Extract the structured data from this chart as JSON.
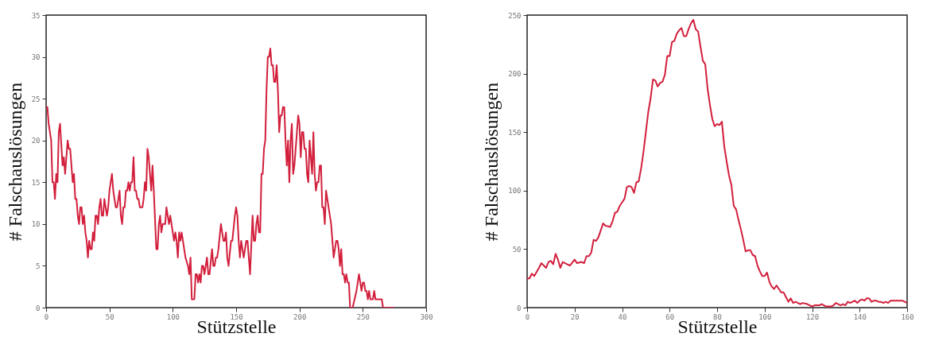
{
  "chart_data": [
    {
      "type": "line",
      "xlabel": "Stützstelle",
      "ylabel": "# Falschauslösungen",
      "xlim": [
        0,
        300
      ],
      "ylim": [
        0,
        35
      ],
      "xticks": [
        0,
        50,
        100,
        150,
        200,
        250,
        300
      ],
      "yticks": [
        0,
        5,
        10,
        15,
        20,
        25,
        30,
        35
      ],
      "grid": false,
      "line_style": "solid",
      "series": [
        {
          "color": "#d21f3c",
          "x": [
            0,
            1,
            2,
            4,
            5,
            6,
            7,
            8,
            9,
            10,
            11,
            13,
            14,
            15,
            17,
            18,
            19,
            21,
            22,
            23,
            24,
            25,
            26,
            27,
            28,
            29,
            30,
            31,
            32,
            33,
            34,
            35,
            36,
            37,
            38,
            39,
            40,
            41,
            42,
            43,
            44,
            45,
            46,
            47,
            48,
            49,
            50,
            52,
            53,
            54,
            55,
            56,
            57,
            58,
            59,
            60,
            61,
            62,
            63,
            64,
            65,
            66,
            67,
            68,
            69,
            70,
            71,
            72,
            73,
            74,
            76,
            77,
            78,
            79,
            80,
            81,
            83,
            84,
            85,
            87,
            88,
            89,
            90,
            91,
            92,
            94,
            95,
            96,
            97,
            98,
            99,
            100,
            101,
            102,
            103,
            104,
            105,
            106,
            107,
            108,
            110,
            112,
            113,
            114,
            115,
            117,
            118,
            119,
            120,
            121,
            122,
            123,
            124,
            125,
            127,
            128,
            129,
            131,
            132,
            133,
            134,
            135,
            136,
            138,
            139,
            140,
            141,
            142,
            143,
            144,
            146,
            147,
            149,
            150,
            151,
            152,
            153,
            154,
            155,
            156,
            157,
            158,
            159,
            160,
            161,
            163,
            164,
            165,
            166,
            167,
            168,
            169,
            170,
            171,
            172,
            173,
            174,
            175,
            176,
            177,
            178,
            179,
            180,
            181,
            182,
            183,
            184,
            185,
            186,
            187,
            188,
            189,
            190,
            191,
            192,
            193,
            194,
            195,
            196,
            197,
            198,
            199,
            200,
            201,
            202,
            203,
            204,
            205,
            206,
            207,
            208,
            209,
            210,
            211,
            212,
            213,
            214,
            215,
            216,
            217,
            218,
            219,
            220,
            221,
            222,
            223,
            224,
            225,
            226,
            227,
            228,
            229,
            230,
            231,
            232,
            233,
            234,
            235,
            236,
            237,
            238,
            239,
            240,
            242,
            245,
            247,
            249,
            250,
            251,
            252,
            253,
            254,
            255,
            256,
            258,
            259,
            260,
            265,
            266,
            275
          ],
          "values": [
            24,
            24,
            22,
            20,
            15,
            15,
            13,
            16,
            15,
            21,
            22,
            17,
            18,
            16,
            20,
            19,
            19,
            15,
            16,
            13,
            13,
            11,
            10,
            12,
            12,
            10,
            11,
            9,
            8,
            6,
            8,
            7,
            7,
            9,
            8,
            11,
            11,
            10,
            12,
            13,
            11,
            11,
            13,
            12,
            11,
            12,
            14,
            16,
            14,
            13,
            12,
            12,
            13,
            14,
            11,
            10,
            12,
            12,
            14,
            14,
            15,
            14,
            15,
            15,
            18,
            14,
            14,
            13,
            13,
            12,
            12,
            13,
            15,
            14,
            19,
            18,
            14,
            17,
            14,
            7,
            7,
            10,
            11,
            9,
            10,
            10,
            12,
            11,
            10,
            11,
            10,
            9,
            8,
            9,
            8,
            6,
            9,
            8,
            9,
            8,
            6,
            5,
            4,
            6,
            1,
            1,
            4,
            4,
            3,
            4,
            3,
            5,
            5,
            4,
            6,
            4,
            4,
            7,
            5,
            5,
            6,
            6,
            7,
            10,
            9,
            8,
            8,
            9,
            6,
            5,
            8,
            8,
            11,
            12,
            11,
            8,
            6,
            8,
            7,
            6,
            7,
            8,
            8,
            6,
            4,
            11,
            8,
            8,
            10,
            11,
            9,
            9,
            16,
            16,
            19,
            20,
            26,
            30,
            30,
            31,
            29,
            29,
            27,
            27,
            29,
            26,
            21,
            23,
            23,
            24,
            24,
            20,
            17,
            20,
            15,
            20,
            22,
            16,
            17,
            19,
            21,
            23,
            22,
            18,
            21,
            21,
            19,
            19,
            16,
            15,
            20,
            18,
            16,
            21,
            16,
            14,
            15,
            15,
            17,
            17,
            12,
            12,
            10,
            14,
            13,
            12,
            11,
            10,
            8,
            6,
            7,
            8,
            8,
            7,
            5,
            7,
            4,
            4,
            3,
            4,
            3,
            3,
            0,
            0,
            2,
            4,
            2,
            3,
            3,
            2,
            2,
            1,
            2,
            1,
            1,
            2,
            1,
            1,
            0,
            0
          ]
        }
      ]
    },
    {
      "type": "line",
      "xlabel": "Stützstelle",
      "ylabel": "# Falschauslösungen",
      "xlim": [
        0,
        160
      ],
      "ylim": [
        0,
        250
      ],
      "xticks": [
        0,
        20,
        40,
        60,
        80,
        100,
        120,
        140,
        160
      ],
      "yticks": [
        0,
        50,
        100,
        150,
        200,
        250
      ],
      "grid": false,
      "line_style": "solid",
      "series": [
        {
          "color": "#d21f3c",
          "x": [
            0,
            1,
            2,
            3,
            5,
            6,
            8,
            9,
            10,
            11,
            12,
            13,
            14,
            15,
            17,
            18,
            20,
            21,
            23,
            24,
            25,
            26,
            27,
            28,
            29,
            30,
            31,
            32,
            33,
            35,
            36,
            37,
            38,
            39,
            40,
            41,
            42,
            43,
            44,
            45,
            46,
            47,
            48,
            49,
            50,
            51,
            52,
            53,
            54,
            55,
            56,
            57,
            58,
            59,
            60,
            61,
            62,
            63,
            64,
            65,
            66,
            67,
            68,
            69,
            70,
            71,
            72,
            73,
            74,
            75,
            76,
            77,
            78,
            79,
            80,
            81,
            82,
            83,
            84,
            85,
            86,
            87,
            88,
            89,
            90,
            91,
            92,
            93,
            94,
            95,
            96,
            97,
            98,
            99,
            100,
            101,
            102,
            103,
            104,
            105,
            106,
            107,
            108,
            109,
            110,
            111,
            112,
            113,
            115,
            116,
            118,
            120,
            121,
            123,
            124,
            125,
            126,
            128,
            129,
            130,
            132,
            133,
            134,
            135,
            136,
            138,
            139,
            140,
            141,
            142,
            143,
            144,
            145,
            146,
            147,
            148,
            149,
            150,
            151,
            152,
            153,
            156,
            158,
            159,
            160
          ],
          "values": [
            25,
            25,
            29,
            27,
            34,
            38,
            34,
            39,
            40,
            37,
            46,
            41,
            34,
            39,
            37,
            36,
            41,
            38,
            39,
            38,
            44,
            44,
            47,
            58,
            57,
            60,
            66,
            72,
            70,
            69,
            74,
            81,
            82,
            87,
            90,
            93,
            103,
            104,
            103,
            98,
            107,
            108,
            119,
            133,
            150,
            167,
            179,
            195,
            194,
            189,
            192,
            193,
            199,
            215,
            215,
            227,
            228,
            234,
            237,
            239,
            232,
            232,
            238,
            243,
            246,
            238,
            236,
            223,
            211,
            208,
            187,
            173,
            161,
            155,
            157,
            156,
            159,
            138,
            125,
            113,
            105,
            87,
            84,
            75,
            67,
            58,
            48,
            49,
            49,
            45,
            44,
            36,
            31,
            27,
            27,
            30,
            22,
            18,
            16,
            19,
            16,
            13,
            13,
            9,
            5,
            8,
            4,
            5,
            3,
            4,
            3,
            1,
            2,
            2,
            3,
            2,
            1,
            1,
            2,
            4,
            2,
            3,
            2,
            5,
            4,
            6,
            4,
            6,
            7,
            6,
            8,
            8,
            5,
            6,
            6,
            5,
            5,
            4,
            5,
            4,
            6,
            6,
            6,
            5,
            4
          ]
        }
      ]
    }
  ]
}
